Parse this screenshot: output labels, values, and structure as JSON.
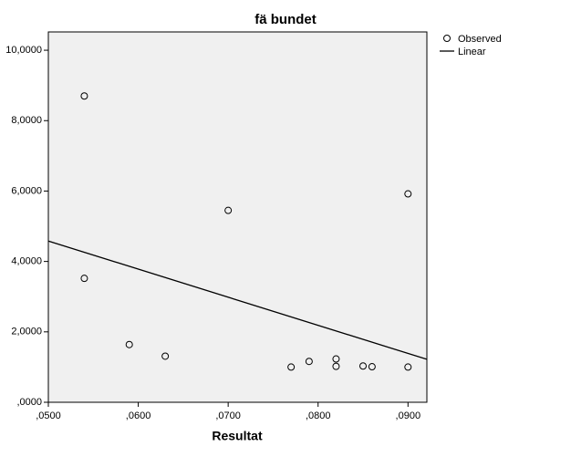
{
  "chart_data": {
    "type": "scatter",
    "title": "fä bundet",
    "x_label": "Resultat",
    "xlim": [
      0.05,
      0.0921
    ],
    "ylim": [
      0,
      10.52
    ],
    "xticks": [
      {
        "value": 0.05,
        "label": ",0500"
      },
      {
        "value": 0.06,
        "label": ",0600"
      },
      {
        "value": 0.07,
        "label": ",0700"
      },
      {
        "value": 0.08,
        "label": ",0800"
      },
      {
        "value": 0.09,
        "label": ",0900"
      }
    ],
    "yticks": [
      {
        "value": 0,
        "label": ",0000"
      },
      {
        "value": 2,
        "label": "2,0000"
      },
      {
        "value": 4,
        "label": "4,0000"
      },
      {
        "value": 6,
        "label": "6,0000"
      },
      {
        "value": 8,
        "label": "8,0000"
      },
      {
        "value": 10,
        "label": "10,0000"
      }
    ],
    "legend": "right-top",
    "series": [
      {
        "name": "Observed",
        "color": "#000000",
        "kind": "points",
        "x": [
          0.054,
          0.054,
          0.059,
          0.063,
          0.07,
          0.077,
          0.079,
          0.082,
          0.082,
          0.085,
          0.086,
          0.09,
          0.09
        ],
        "values": [
          8.7,
          3.52,
          1.64,
          1.31,
          5.45,
          1.0,
          1.16,
          1.23,
          1.02,
          1.03,
          1.01,
          5.92,
          1.0
        ]
      },
      {
        "name": "Linear",
        "color": "#000000",
        "kind": "line",
        "x": [
          0.05,
          0.0921
        ],
        "values": [
          4.58,
          1.22
        ]
      }
    ]
  }
}
